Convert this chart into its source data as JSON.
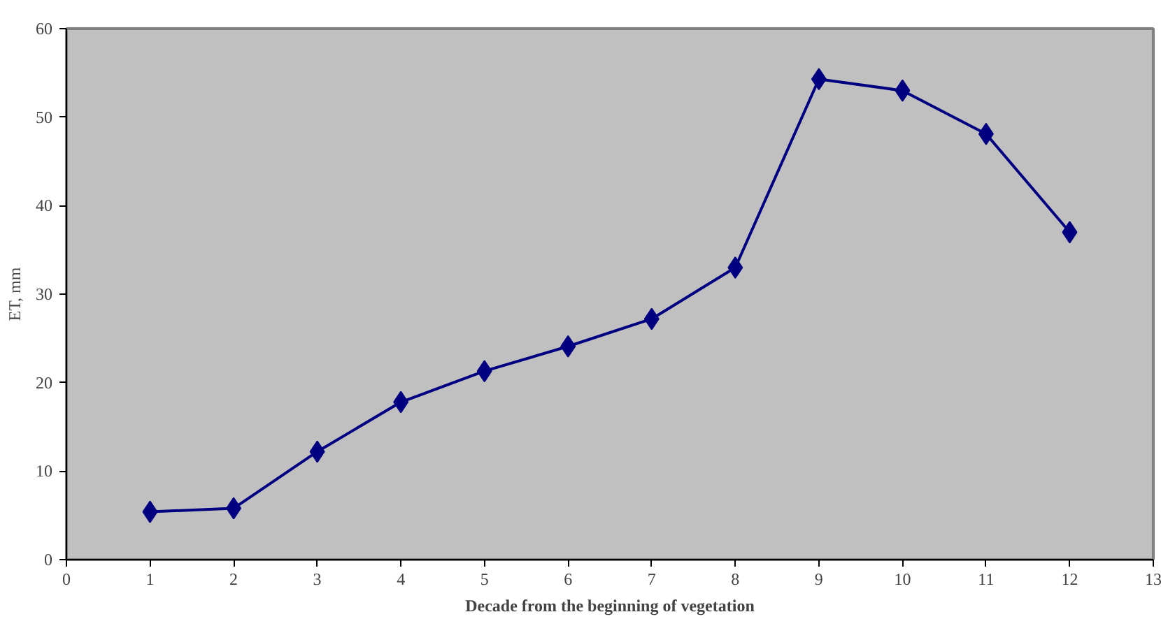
{
  "chart_data": {
    "type": "line",
    "xlabel": "Decade from the beginning of vegetation",
    "ylabel": "ET, mm",
    "x": [
      1,
      2,
      3,
      4,
      5,
      6,
      7,
      8,
      9,
      10,
      11,
      12
    ],
    "series": [
      {
        "color": "#000080",
        "values": [
          5.4,
          5.8,
          12.2,
          17.8,
          21.3,
          24.1,
          27.2,
          33.0,
          54.3,
          53.0,
          48.1,
          37.0
        ]
      }
    ],
    "xlim": [
      0,
      13
    ],
    "xticks": [
      0,
      1,
      2,
      3,
      4,
      5,
      6,
      7,
      8,
      9,
      10,
      11,
      12,
      13
    ],
    "ylim": [
      0,
      60
    ],
    "yticks": [
      0,
      10,
      20,
      30,
      40,
      50,
      60
    ],
    "grid": false,
    "marker": "diamond",
    "line_style": "solid"
  }
}
